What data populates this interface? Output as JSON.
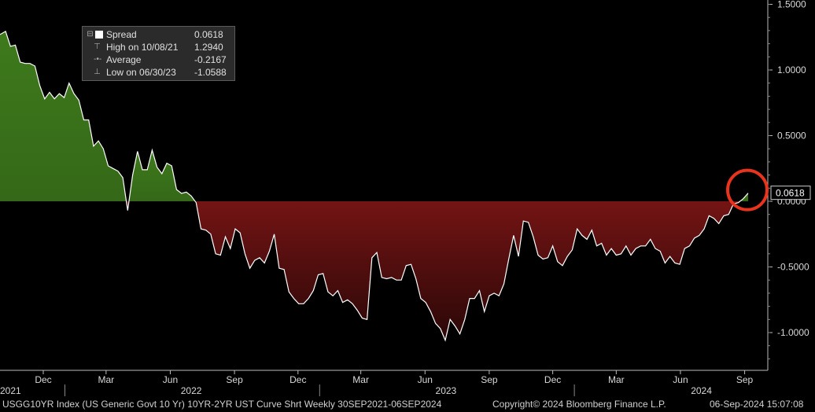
{
  "chart_data": {
    "type": "area",
    "frequency": "Weekly",
    "x_start": "2021-09-30",
    "x_end": "2024-09-06",
    "y_ticks": [
      1.5,
      1.0,
      0.5,
      0.0,
      -0.5,
      -1.0
    ],
    "y_tick_labels": [
      "1.5000",
      "1.0000",
      "0.5000",
      "0.0000",
      "-0.5000",
      "-1.0000"
    ],
    "ylim": [
      -1.3,
      1.55
    ],
    "x_ticks": [
      {
        "date": "2021-12-01",
        "label": "Dec"
      },
      {
        "date": "2022-03-01",
        "label": "Mar"
      },
      {
        "date": "2022-06-01",
        "label": "Jun"
      },
      {
        "date": "2022-09-01",
        "label": "Sep"
      },
      {
        "date": "2022-12-01",
        "label": "Dec"
      },
      {
        "date": "2023-03-01",
        "label": "Mar"
      },
      {
        "date": "2023-06-01",
        "label": "Jun"
      },
      {
        "date": "2023-09-01",
        "label": "Sep"
      },
      {
        "date": "2023-12-01",
        "label": "Dec"
      },
      {
        "date": "2024-03-01",
        "label": "Mar"
      },
      {
        "date": "2024-06-01",
        "label": "Jun"
      },
      {
        "date": "2024-09-01",
        "label": "Sep"
      }
    ],
    "year_labels": [
      {
        "date": "2021-10-15",
        "label": "2021"
      },
      {
        "date": "2022-07-01",
        "label": "2022"
      },
      {
        "date": "2023-07-01",
        "label": "2023"
      },
      {
        "date": "2024-07-01",
        "label": "2024"
      }
    ],
    "year_dividers": [
      "2022-01-01",
      "2023-01-01",
      "2024-01-01"
    ],
    "positive_color": "#3e7a1c",
    "negative_color": "#7a1515",
    "line_color": "#ffffff",
    "highlight_color": "#e8341c",
    "last_value_label": "0.0618",
    "series": [
      {
        "name": "Spread",
        "points": [
          [
            "2021-09-30",
            1.27
          ],
          [
            "2021-10-08",
            1.294
          ],
          [
            "2021-10-15",
            1.18
          ],
          [
            "2021-10-22",
            1.19
          ],
          [
            "2021-10-29",
            1.06
          ],
          [
            "2021-11-05",
            1.05
          ],
          [
            "2021-11-12",
            1.05
          ],
          [
            "2021-11-19",
            1.03
          ],
          [
            "2021-11-26",
            0.88
          ],
          [
            "2021-12-03",
            0.78
          ],
          [
            "2021-12-10",
            0.83
          ],
          [
            "2021-12-17",
            0.78
          ],
          [
            "2021-12-24",
            0.82
          ],
          [
            "2021-12-31",
            0.79
          ],
          [
            "2022-01-07",
            0.9
          ],
          [
            "2022-01-14",
            0.82
          ],
          [
            "2022-01-21",
            0.77
          ],
          [
            "2022-01-28",
            0.62
          ],
          [
            "2022-02-04",
            0.62
          ],
          [
            "2022-02-11",
            0.42
          ],
          [
            "2022-02-18",
            0.46
          ],
          [
            "2022-02-25",
            0.4
          ],
          [
            "2022-03-04",
            0.27
          ],
          [
            "2022-03-11",
            0.25
          ],
          [
            "2022-03-18",
            0.23
          ],
          [
            "2022-03-25",
            0.18
          ],
          [
            "2022-04-01",
            -0.07
          ],
          [
            "2022-04-08",
            0.2
          ],
          [
            "2022-04-15",
            0.38
          ],
          [
            "2022-04-22",
            0.24
          ],
          [
            "2022-04-29",
            0.24
          ],
          [
            "2022-05-06",
            0.39
          ],
          [
            "2022-05-13",
            0.26
          ],
          [
            "2022-05-20",
            0.21
          ],
          [
            "2022-05-27",
            0.29
          ],
          [
            "2022-06-03",
            0.27
          ],
          [
            "2022-06-10",
            0.09
          ],
          [
            "2022-06-17",
            0.06
          ],
          [
            "2022-06-24",
            0.07
          ],
          [
            "2022-07-01",
            0.04
          ],
          [
            "2022-07-08",
            -0.01
          ],
          [
            "2022-07-15",
            -0.21
          ],
          [
            "2022-07-22",
            -0.22
          ],
          [
            "2022-07-29",
            -0.25
          ],
          [
            "2022-08-05",
            -0.4
          ],
          [
            "2022-08-12",
            -0.41
          ],
          [
            "2022-08-19",
            -0.27
          ],
          [
            "2022-08-26",
            -0.36
          ],
          [
            "2022-09-02",
            -0.21
          ],
          [
            "2022-09-09",
            -0.24
          ],
          [
            "2022-09-16",
            -0.4
          ],
          [
            "2022-09-23",
            -0.51
          ],
          [
            "2022-09-30",
            -0.45
          ],
          [
            "2022-10-07",
            -0.43
          ],
          [
            "2022-10-14",
            -0.47
          ],
          [
            "2022-10-21",
            -0.38
          ],
          [
            "2022-10-28",
            -0.25
          ],
          [
            "2022-11-04",
            -0.51
          ],
          [
            "2022-11-11",
            -0.52
          ],
          [
            "2022-11-18",
            -0.69
          ],
          [
            "2022-11-25",
            -0.74
          ],
          [
            "2022-12-02",
            -0.78
          ],
          [
            "2022-12-09",
            -0.78
          ],
          [
            "2022-12-16",
            -0.74
          ],
          [
            "2022-12-23",
            -0.68
          ],
          [
            "2022-12-30",
            -0.56
          ],
          [
            "2023-01-06",
            -0.55
          ],
          [
            "2023-01-13",
            -0.69
          ],
          [
            "2023-01-20",
            -0.72
          ],
          [
            "2023-01-27",
            -0.68
          ],
          [
            "2023-02-03",
            -0.77
          ],
          [
            "2023-02-10",
            -0.75
          ],
          [
            "2023-02-17",
            -0.78
          ],
          [
            "2023-02-24",
            -0.83
          ],
          [
            "2023-03-03",
            -0.89
          ],
          [
            "2023-03-10",
            -0.9
          ],
          [
            "2023-03-17",
            -0.43
          ],
          [
            "2023-03-24",
            -0.39
          ],
          [
            "2023-03-31",
            -0.58
          ],
          [
            "2023-04-07",
            -0.59
          ],
          [
            "2023-04-14",
            -0.58
          ],
          [
            "2023-04-21",
            -0.6
          ],
          [
            "2023-04-28",
            -0.6
          ],
          [
            "2023-05-05",
            -0.49
          ],
          [
            "2023-05-12",
            -0.48
          ],
          [
            "2023-05-19",
            -0.59
          ],
          [
            "2023-05-26",
            -0.74
          ],
          [
            "2023-06-02",
            -0.77
          ],
          [
            "2023-06-09",
            -0.84
          ],
          [
            "2023-06-16",
            -0.93
          ],
          [
            "2023-06-23",
            -0.97
          ],
          [
            "2023-06-30",
            -1.0588
          ],
          [
            "2023-07-07",
            -0.9
          ],
          [
            "2023-07-14",
            -0.95
          ],
          [
            "2023-07-21",
            -1.01
          ],
          [
            "2023-07-28",
            -0.9
          ],
          [
            "2023-08-04",
            -0.74
          ],
          [
            "2023-08-11",
            -0.74
          ],
          [
            "2023-08-18",
            -0.68
          ],
          [
            "2023-08-25",
            -0.84
          ],
          [
            "2023-09-01",
            -0.72
          ],
          [
            "2023-09-08",
            -0.7
          ],
          [
            "2023-09-15",
            -0.72
          ],
          [
            "2023-09-22",
            -0.63
          ],
          [
            "2023-09-29",
            -0.44
          ],
          [
            "2023-10-06",
            -0.26
          ],
          [
            "2023-10-13",
            -0.42
          ],
          [
            "2023-10-20",
            -0.15
          ],
          [
            "2023-10-27",
            -0.16
          ],
          [
            "2023-11-03",
            -0.27
          ],
          [
            "2023-11-10",
            -0.41
          ],
          [
            "2023-11-17",
            -0.44
          ],
          [
            "2023-11-24",
            -0.43
          ],
          [
            "2023-12-01",
            -0.34
          ],
          [
            "2023-12-08",
            -0.46
          ],
          [
            "2023-12-15",
            -0.49
          ],
          [
            "2023-12-22",
            -0.42
          ],
          [
            "2023-12-29",
            -0.37
          ],
          [
            "2024-01-05",
            -0.21
          ],
          [
            "2024-01-12",
            -0.26
          ],
          [
            "2024-01-19",
            -0.29
          ],
          [
            "2024-01-26",
            -0.22
          ],
          [
            "2024-02-02",
            -0.34
          ],
          [
            "2024-02-09",
            -0.32
          ],
          [
            "2024-02-16",
            -0.41
          ],
          [
            "2024-02-23",
            -0.36
          ],
          [
            "2024-03-01",
            -0.41
          ],
          [
            "2024-03-08",
            -0.4
          ],
          [
            "2024-03-15",
            -0.34
          ],
          [
            "2024-03-22",
            -0.41
          ],
          [
            "2024-03-29",
            -0.36
          ],
          [
            "2024-04-05",
            -0.34
          ],
          [
            "2024-04-12",
            -0.34
          ],
          [
            "2024-04-19",
            -0.29
          ],
          [
            "2024-04-26",
            -0.36
          ],
          [
            "2024-05-03",
            -0.38
          ],
          [
            "2024-05-10",
            -0.47
          ],
          [
            "2024-05-17",
            -0.42
          ],
          [
            "2024-05-24",
            -0.47
          ],
          [
            "2024-05-31",
            -0.48
          ],
          [
            "2024-06-07",
            -0.36
          ],
          [
            "2024-06-14",
            -0.34
          ],
          [
            "2024-06-21",
            -0.28
          ],
          [
            "2024-06-28",
            -0.26
          ],
          [
            "2024-07-05",
            -0.21
          ],
          [
            "2024-07-12",
            -0.11
          ],
          [
            "2024-07-19",
            -0.13
          ],
          [
            "2024-07-26",
            -0.17
          ],
          [
            "2024-08-02",
            -0.11
          ],
          [
            "2024-08-09",
            -0.1
          ],
          [
            "2024-08-16",
            -0.02
          ],
          [
            "2024-08-23",
            -0.01
          ],
          [
            "2024-08-30",
            0.02
          ],
          [
            "2024-09-06",
            0.0618
          ]
        ]
      }
    ]
  },
  "legend": {
    "rows": [
      {
        "label": "Spread",
        "value": "0.0618"
      },
      {
        "label": "High on 10/08/21",
        "value": "1.2940"
      },
      {
        "label": "Average",
        "value": "-0.2167"
      },
      {
        "label": "Low on 06/30/23",
        "value": "-1.0588"
      }
    ]
  },
  "footer": {
    "left": "USGG10YR Index (US Generic Govt 10 Yr) 10YR-2YR UST Curve Shrt  Weekly 30SEP2021-06SEP2024",
    "copyright": "Copyright© 2024 Bloomberg Finance L.P.",
    "timestamp": "06-Sep-2024 15:07:08"
  }
}
